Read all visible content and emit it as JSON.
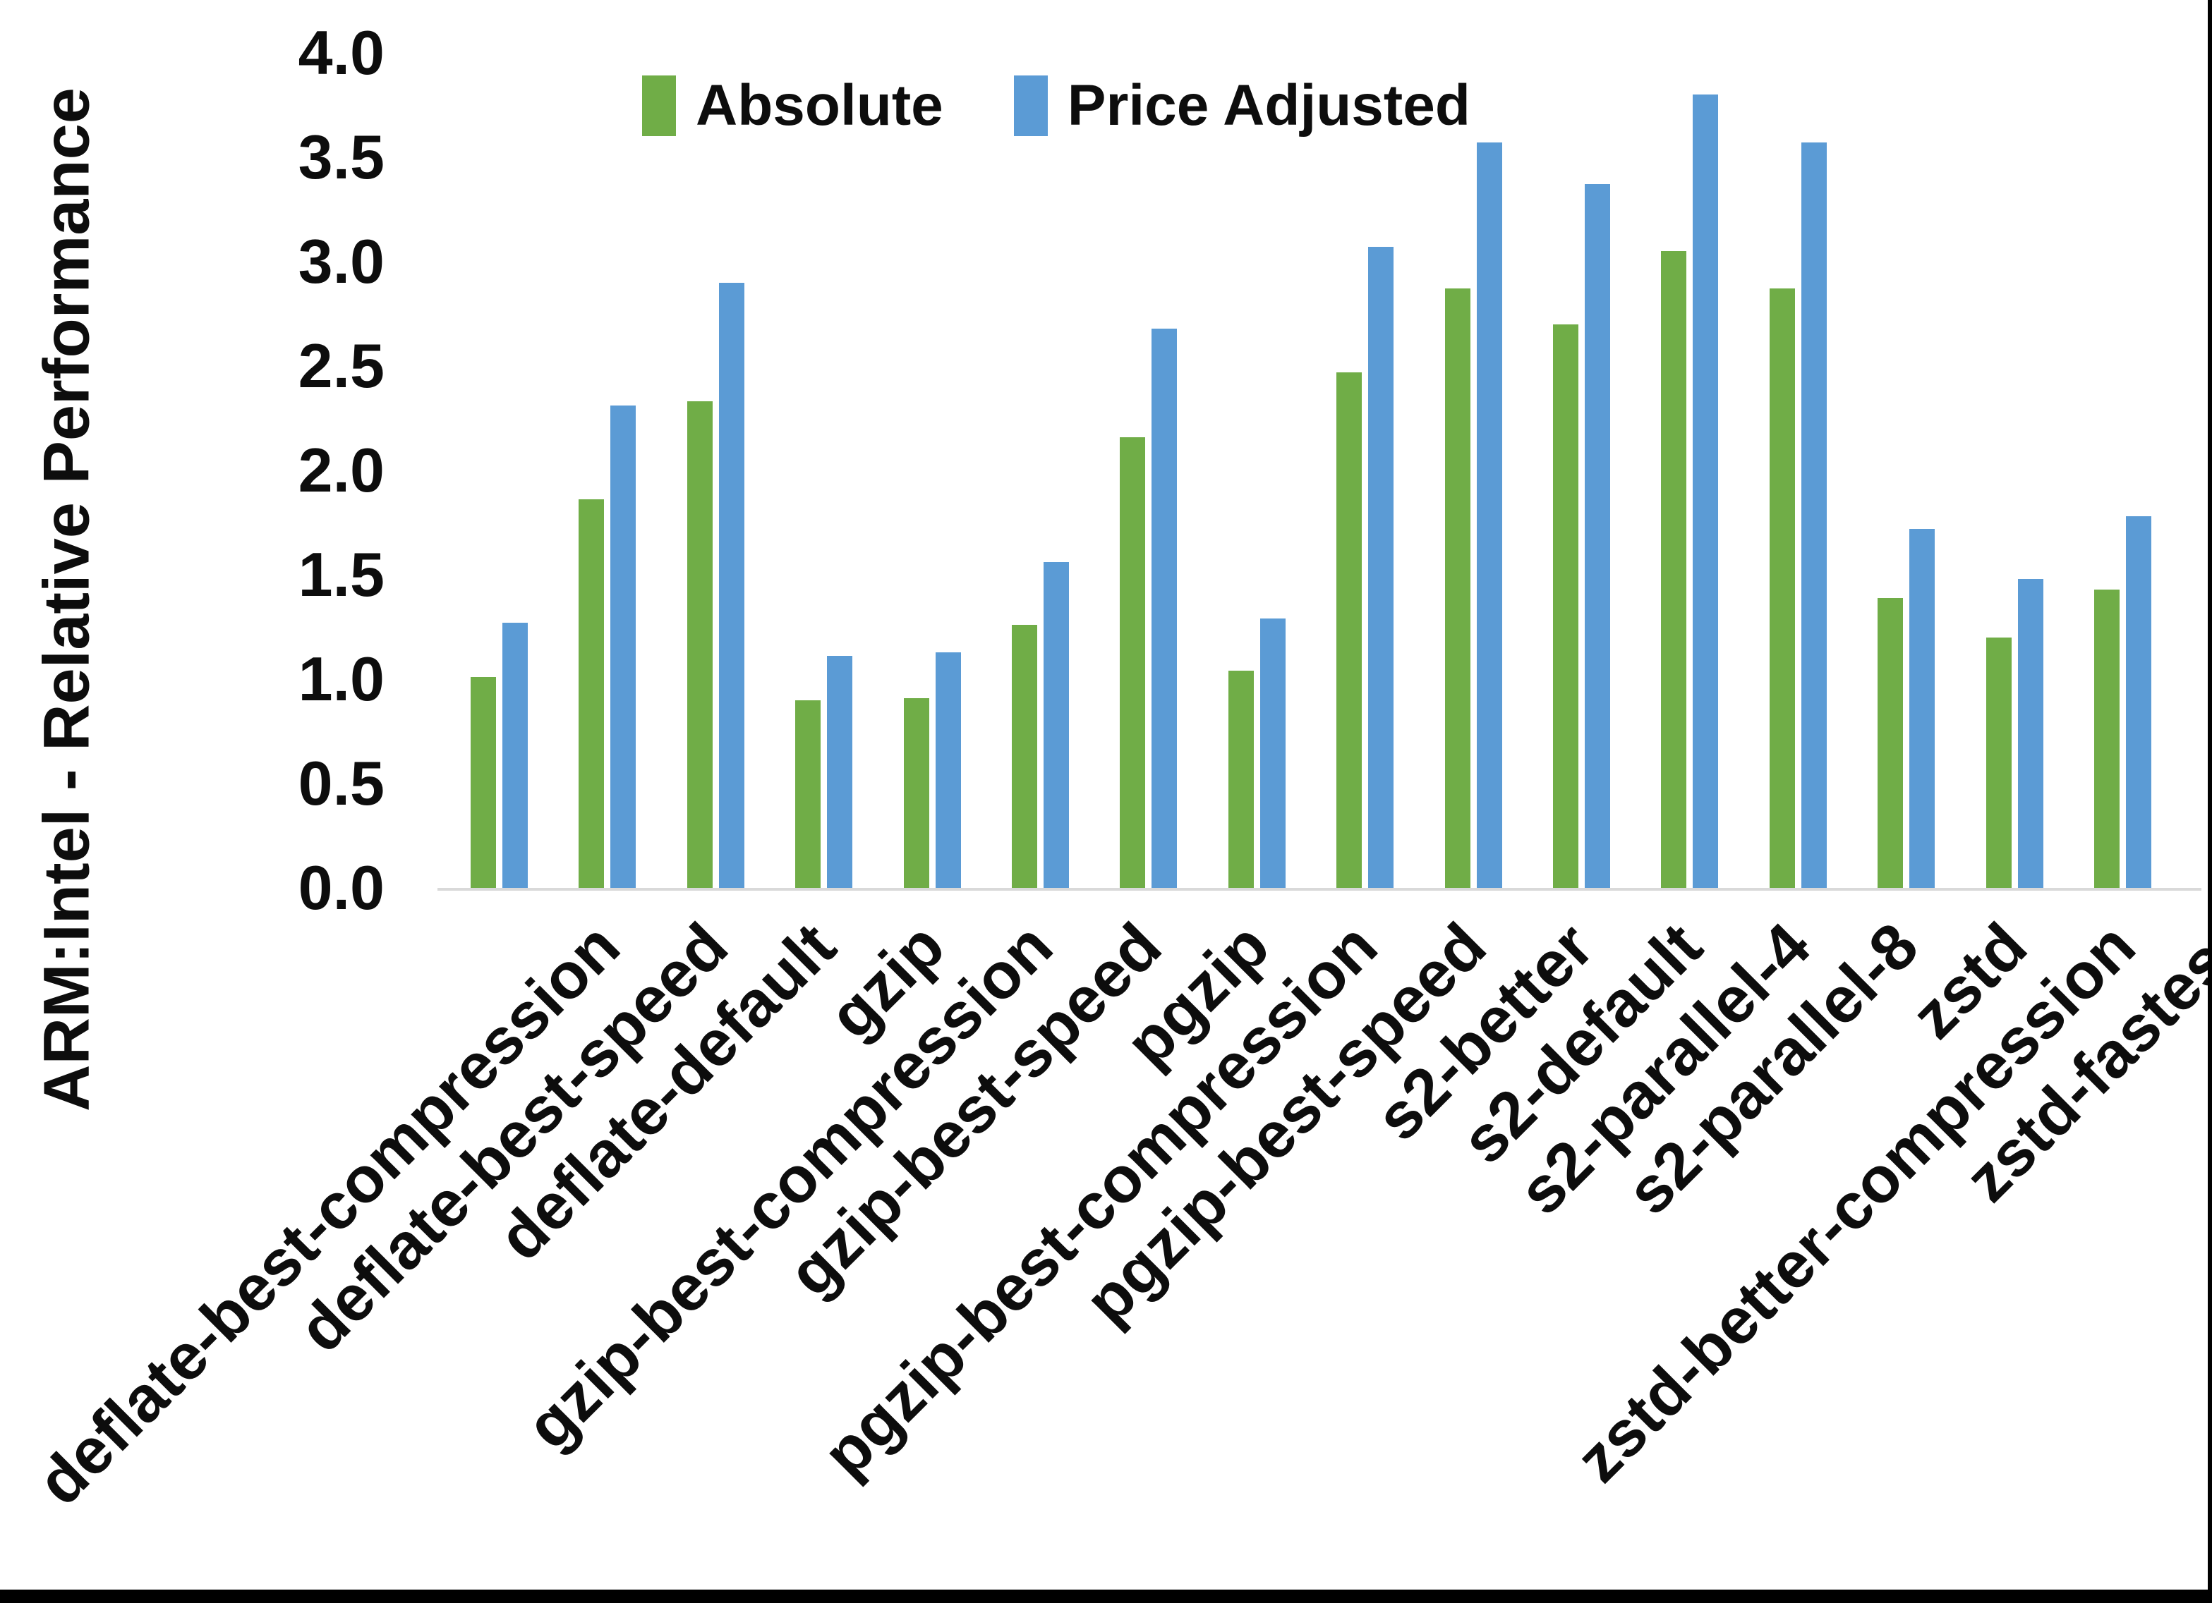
{
  "chart_data": {
    "type": "bar",
    "title": "",
    "ylabel": "ARM:Intel - Relative Performance",
    "xlabel": "",
    "categories": [
      "deflate-best-compression",
      "deflate-best-speed",
      "deflate-default",
      "gzip",
      "gzip-best-compression",
      "gzip-best-speed",
      "pgzip",
      "pgzip-best-compression",
      "pgzip-best-speed",
      "s2-better",
      "s2-default",
      "s2-parallel-4",
      "s2-parallel-8",
      "zstd",
      "zstd-better-compression",
      "zstd-fastest"
    ],
    "series": [
      {
        "name": "Absolute",
        "color": "#70AD47",
        "values": [
          1.01,
          1.86,
          2.33,
          0.9,
          0.91,
          1.26,
          2.16,
          1.04,
          2.47,
          2.87,
          2.7,
          3.05,
          2.87,
          1.39,
          1.2,
          1.43
        ]
      },
      {
        "name": "Price Adjusted",
        "color": "#5B9BD5",
        "values": [
          1.27,
          2.31,
          2.9,
          1.11,
          1.13,
          1.56,
          2.68,
          1.29,
          3.07,
          3.57,
          3.37,
          3.8,
          3.57,
          1.72,
          1.48,
          1.78
        ]
      }
    ],
    "y_ticks": [
      0.0,
      0.5,
      1.0,
      1.5,
      2.0,
      2.5,
      3.0,
      3.5,
      4.0
    ],
    "ylim": [
      0,
      4
    ],
    "grid": false,
    "legend_position": "top"
  },
  "colors": {
    "axis_line": "#D9D9D9",
    "text": "#0D0D0D",
    "background": "#FFFFFF",
    "frame_border": "#000000"
  }
}
